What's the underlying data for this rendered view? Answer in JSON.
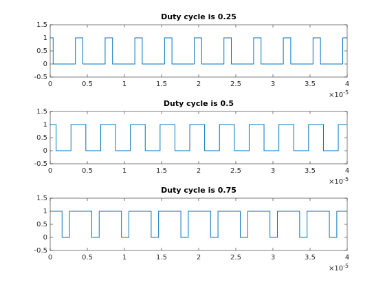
{
  "chart_data": [
    {
      "type": "line",
      "title": "Duty cycle is 0.25",
      "x": [
        0,
        0.04,
        0.04,
        0.34,
        0.34,
        0.44,
        0.44,
        0.74,
        0.74,
        0.84,
        0.84,
        1.14,
        1.14,
        1.24,
        1.24,
        1.54,
        1.54,
        1.64,
        1.64,
        1.94,
        1.94,
        2.04,
        2.04,
        2.34,
        2.34,
        2.44,
        2.44,
        2.74,
        2.74,
        2.84,
        2.84,
        3.14,
        3.14,
        3.24,
        3.24,
        3.54,
        3.54,
        3.64,
        3.64,
        3.94,
        3.94,
        4
      ],
      "series": [
        {
          "color": "#0072bd",
          "values": [
            1,
            1,
            0,
            0,
            1,
            1,
            0,
            0,
            1,
            1,
            0,
            0,
            1,
            1,
            0,
            0,
            1,
            1,
            0,
            0,
            1,
            1,
            0,
            0,
            1,
            1,
            0,
            0,
            1,
            1,
            0,
            0,
            1,
            1,
            0,
            0,
            1,
            1,
            0,
            0,
            1,
            1
          ]
        }
      ],
      "xlim": [
        0,
        4
      ],
      "xticks": [
        0,
        0.5,
        1,
        1.5,
        2,
        2.5,
        3,
        3.5,
        4
      ],
      "x_multiplier": "×10",
      "x_multiplier_exponent": "-5",
      "ylim": [
        -0.5,
        1.5
      ],
      "yticks": [
        -0.5,
        0,
        0.5,
        1,
        1.5
      ]
    },
    {
      "type": "line",
      "title": "Duty cycle is 0.5",
      "x": [
        0,
        0.08,
        0.08,
        0.28,
        0.28,
        0.48,
        0.48,
        0.68,
        0.68,
        0.88,
        0.88,
        1.08,
        1.08,
        1.28,
        1.28,
        1.48,
        1.48,
        1.68,
        1.68,
        1.88,
        1.88,
        2.08,
        2.08,
        2.28,
        2.28,
        2.48,
        2.48,
        2.68,
        2.68,
        2.88,
        2.88,
        3.08,
        3.08,
        3.28,
        3.28,
        3.48,
        3.48,
        3.68,
        3.68,
        3.88,
        3.88,
        4
      ],
      "series": [
        {
          "color": "#0072bd",
          "values": [
            1,
            1,
            0,
            0,
            1,
            1,
            0,
            0,
            1,
            1,
            0,
            0,
            1,
            1,
            0,
            0,
            1,
            1,
            0,
            0,
            1,
            1,
            0,
            0,
            1,
            1,
            0,
            0,
            1,
            1,
            0,
            0,
            1,
            1,
            0,
            0,
            1,
            1,
            0,
            0,
            1,
            1
          ]
        }
      ],
      "xlim": [
        0,
        4
      ],
      "xticks": [
        0,
        0.5,
        1,
        1.5,
        2,
        2.5,
        3,
        3.5,
        4
      ],
      "x_multiplier": "×10",
      "x_multiplier_exponent": "-5",
      "ylim": [
        -0.5,
        1.5
      ],
      "yticks": [
        -0.5,
        0,
        0.5,
        1,
        1.5
      ]
    },
    {
      "type": "line",
      "title": "Duty cycle is 0.75",
      "x": [
        0,
        0.16,
        0.16,
        0.26,
        0.26,
        0.56,
        0.56,
        0.66,
        0.66,
        0.96,
        0.96,
        1.06,
        1.06,
        1.36,
        1.36,
        1.46,
        1.46,
        1.76,
        1.76,
        1.86,
        1.86,
        2.16,
        2.16,
        2.26,
        2.26,
        2.56,
        2.56,
        2.66,
        2.66,
        2.96,
        2.96,
        3.06,
        3.06,
        3.36,
        3.36,
        3.46,
        3.46,
        3.76,
        3.76,
        3.86,
        3.86,
        4
      ],
      "series": [
        {
          "color": "#0072bd",
          "values": [
            1,
            1,
            0,
            0,
            1,
            1,
            0,
            0,
            1,
            1,
            0,
            0,
            1,
            1,
            0,
            0,
            1,
            1,
            0,
            0,
            1,
            1,
            0,
            0,
            1,
            1,
            0,
            0,
            1,
            1,
            0,
            0,
            1,
            1,
            0,
            0,
            1,
            1,
            0,
            0,
            1,
            1
          ]
        }
      ],
      "xlim": [
        0,
        4
      ],
      "xticks": [
        0,
        0.5,
        1,
        1.5,
        2,
        2.5,
        3,
        3.5,
        4
      ],
      "x_multiplier": "×10",
      "x_multiplier_exponent": "-5",
      "ylim": [
        -0.5,
        1.5
      ],
      "yticks": [
        -0.5,
        0,
        0.5,
        1,
        1.5
      ]
    }
  ]
}
